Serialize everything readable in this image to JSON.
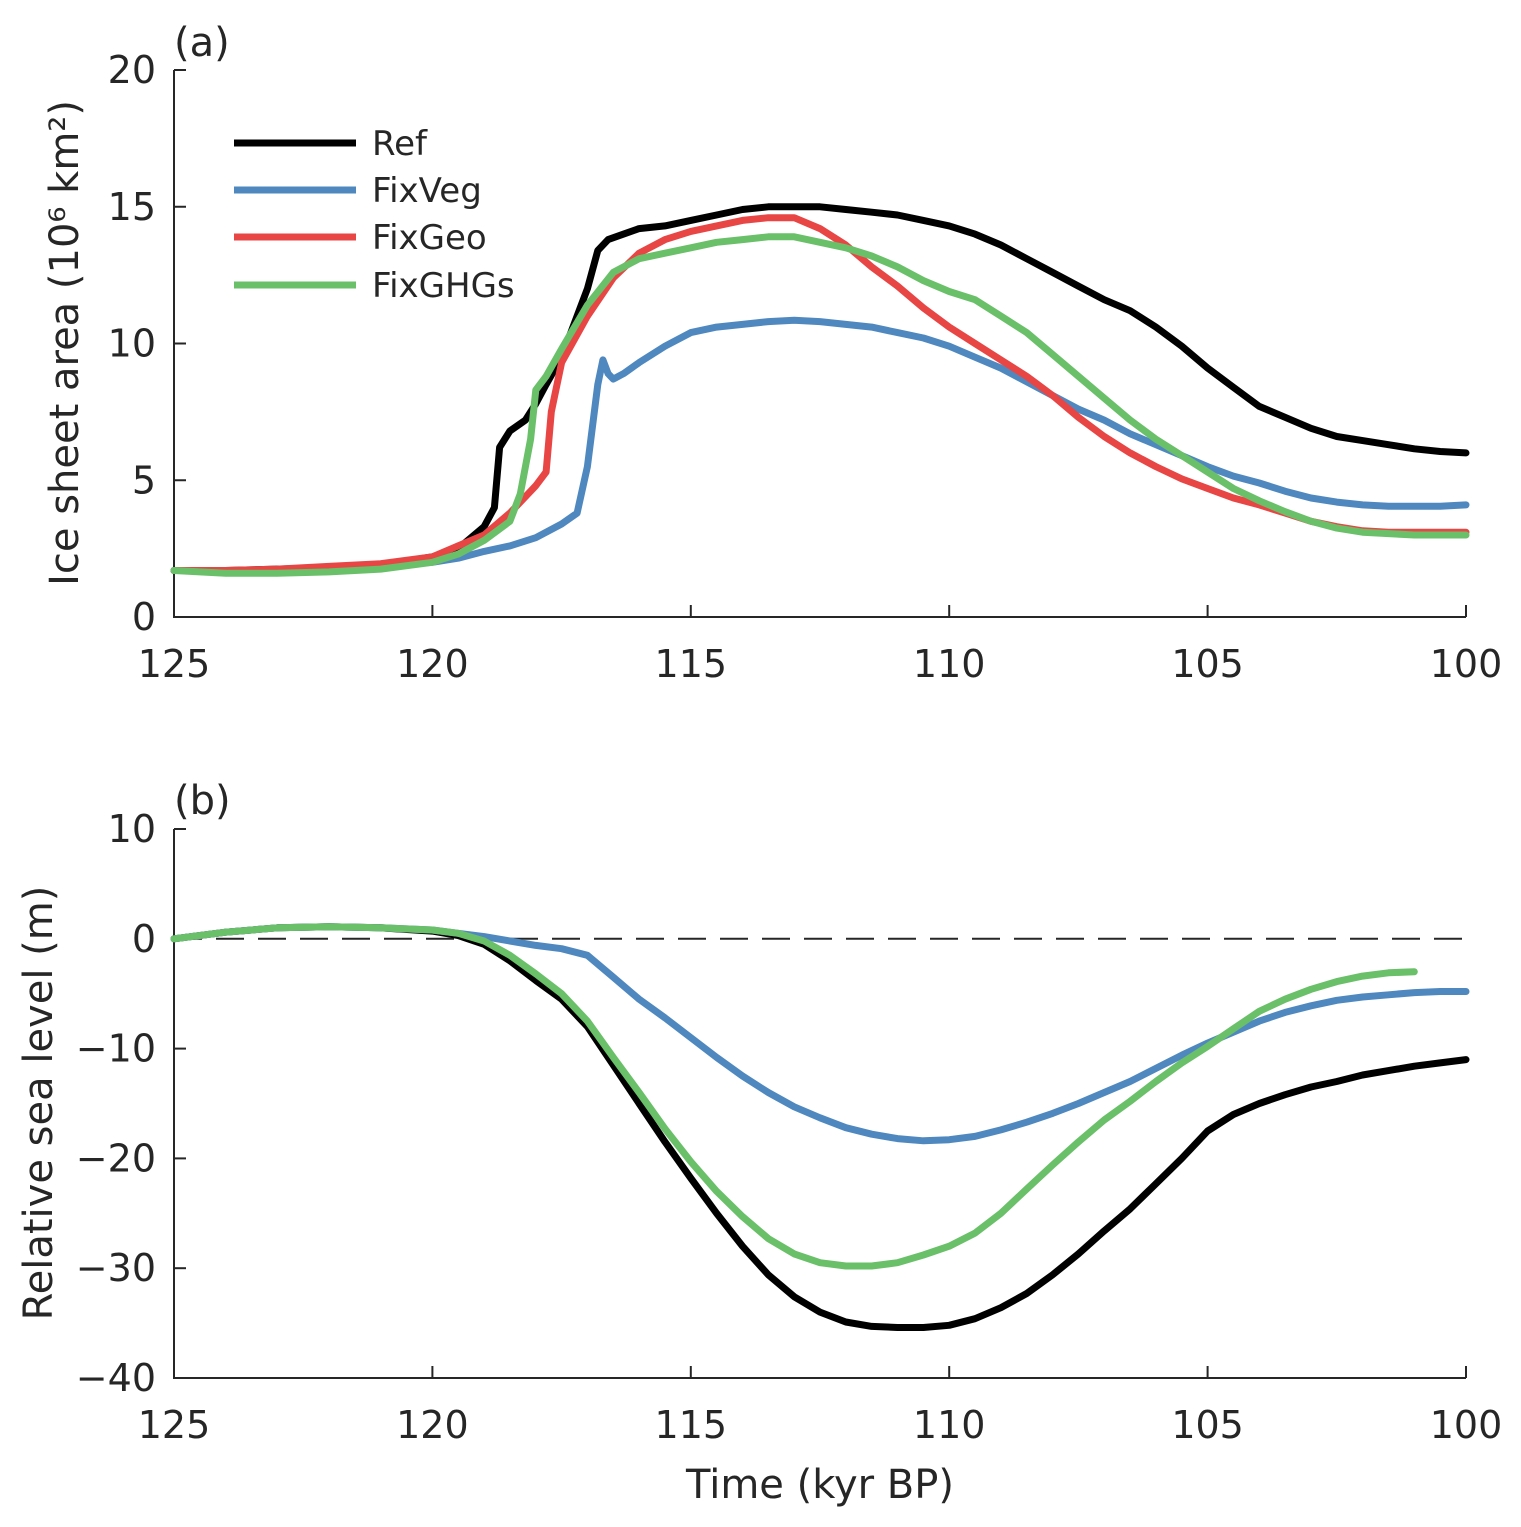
{
  "chart_data": [
    {
      "type": "line",
      "panel_label": "(a)",
      "xlabel": "",
      "ylabel": "Ice sheet area (10⁶ km²)",
      "xlim": [
        125,
        100
      ],
      "ylim": [
        0,
        20
      ],
      "xticks": [
        "125",
        "120",
        "115",
        "110",
        "105",
        "100"
      ],
      "yticks": [
        "0",
        "5",
        "10",
        "15",
        "20"
      ],
      "grid": false,
      "legend": "top-left",
      "series": [
        {
          "name": "Ref",
          "color": "#000000",
          "x": [
            125,
            124,
            123,
            122,
            121,
            120,
            119.5,
            119,
            118.8,
            118.7,
            118.5,
            118.2,
            118,
            117.8,
            117.5,
            117.3,
            117,
            116.8,
            116.6,
            116.3,
            116,
            115.5,
            115,
            114.5,
            114,
            113.5,
            113,
            112.5,
            112,
            111.5,
            111,
            110.5,
            110,
            109.5,
            109,
            108.5,
            108,
            107.5,
            107,
            106.5,
            106,
            105.5,
            105,
            104.5,
            104,
            103.5,
            103,
            102.5,
            102,
            101.5,
            101,
            100.5,
            100
          ],
          "y": [
            1.7,
            1.7,
            1.75,
            1.8,
            1.9,
            2.2,
            2.5,
            3.3,
            4,
            6.2,
            6.8,
            7.2,
            7.8,
            8.5,
            9.5,
            10.5,
            12,
            13.4,
            13.8,
            14,
            14.2,
            14.3,
            14.5,
            14.7,
            14.9,
            15,
            15,
            15,
            14.9,
            14.8,
            14.7,
            14.5,
            14.3,
            14,
            13.6,
            13.1,
            12.6,
            12.1,
            11.6,
            11.2,
            10.6,
            9.9,
            9.1,
            8.4,
            7.7,
            7.3,
            6.9,
            6.6,
            6.45,
            6.3,
            6.15,
            6.05,
            6
          ]
        },
        {
          "name": "FixVeg",
          "color": "#4f88bf",
          "x": [
            125,
            124,
            123,
            122,
            121,
            120,
            119.5,
            119,
            118.5,
            118,
            117.5,
            117.2,
            117,
            116.8,
            116.7,
            116.6,
            116.5,
            116.3,
            116,
            115.5,
            115,
            114.5,
            114,
            113.5,
            113,
            112.5,
            112,
            111.5,
            111,
            110.5,
            110,
            109.5,
            109,
            108.5,
            108,
            107.5,
            107,
            106.5,
            106,
            105.5,
            105,
            104.5,
            104,
            103.5,
            103,
            102.5,
            102,
            101.5,
            101,
            100.5,
            100
          ],
          "y": [
            1.7,
            1.7,
            1.7,
            1.75,
            1.85,
            2,
            2.15,
            2.4,
            2.6,
            2.9,
            3.4,
            3.8,
            5.5,
            8.5,
            9.4,
            8.9,
            8.7,
            8.9,
            9.3,
            9.9,
            10.4,
            10.6,
            10.7,
            10.8,
            10.85,
            10.8,
            10.7,
            10.6,
            10.4,
            10.2,
            9.9,
            9.5,
            9.1,
            8.6,
            8.1,
            7.6,
            7.2,
            6.7,
            6.3,
            5.9,
            5.5,
            5.15,
            4.9,
            4.6,
            4.35,
            4.2,
            4.1,
            4.05,
            4.05,
            4.05,
            4.1
          ]
        },
        {
          "name": "FixGeo",
          "color": "#e84545",
          "x": [
            125,
            124,
            123,
            122,
            121,
            120,
            119.5,
            119,
            118.5,
            118,
            117.8,
            117.7,
            117.5,
            117,
            116.5,
            116,
            115.5,
            115,
            114.5,
            114,
            113.5,
            113,
            112.5,
            112,
            111.5,
            111,
            110.5,
            110,
            109.5,
            109,
            108.5,
            108,
            107.5,
            107,
            106.5,
            106,
            105.5,
            105,
            104.5,
            104,
            103.5,
            103,
            102.5,
            102,
            101.5,
            101,
            100.5,
            100
          ],
          "y": [
            1.7,
            1.7,
            1.75,
            1.85,
            1.95,
            2.2,
            2.6,
            3,
            3.8,
            4.8,
            5.3,
            7.5,
            9.3,
            11,
            12.4,
            13.3,
            13.8,
            14.1,
            14.3,
            14.5,
            14.6,
            14.6,
            14.2,
            13.6,
            12.8,
            12.1,
            11.3,
            10.6,
            10,
            9.4,
            8.8,
            8.1,
            7.3,
            6.6,
            6,
            5.5,
            5.05,
            4.7,
            4.35,
            4.1,
            3.8,
            3.5,
            3.3,
            3.15,
            3.1,
            3.1,
            3.1,
            3.1
          ]
        },
        {
          "name": "FixGHGs",
          "color": "#6abf69",
          "x": [
            125,
            124,
            123,
            122,
            121,
            120,
            119.5,
            119,
            118.5,
            118.3,
            118.1,
            118,
            117.8,
            117.5,
            117,
            116.5,
            116,
            115.5,
            115,
            114.5,
            114,
            113.5,
            113,
            112.5,
            112,
            111.5,
            111,
            110.5,
            110,
            109.5,
            109,
            108.5,
            108,
            107.5,
            107,
            106.5,
            106,
            105.5,
            105,
            104.5,
            104,
            103.5,
            103,
            102.5,
            102,
            101.5,
            101,
            100.5,
            100
          ],
          "y": [
            1.7,
            1.6,
            1.6,
            1.65,
            1.75,
            2,
            2.3,
            2.8,
            3.5,
            4.5,
            6.5,
            8.3,
            8.8,
            9.8,
            11.4,
            12.6,
            13.1,
            13.3,
            13.5,
            13.7,
            13.8,
            13.9,
            13.9,
            13.7,
            13.5,
            13.2,
            12.8,
            12.3,
            11.9,
            11.6,
            11,
            10.4,
            9.6,
            8.8,
            8,
            7.2,
            6.5,
            5.9,
            5.3,
            4.7,
            4.25,
            3.85,
            3.5,
            3.25,
            3.1,
            3.05,
            3,
            3,
            3
          ]
        }
      ]
    },
    {
      "type": "line",
      "panel_label": "(b)",
      "xlabel": "Time (kyr BP)",
      "ylabel": "Relative sea level (m)",
      "xlim": [
        125,
        100
      ],
      "ylim": [
        -40,
        10
      ],
      "xticks": [
        "125",
        "120",
        "115",
        "110",
        "105",
        "100"
      ],
      "yticks": [
        "−40",
        "−30",
        "−20",
        "−10",
        "0",
        "10"
      ],
      "reference_line": {
        "y": 0,
        "style": "dashed"
      },
      "grid": false,
      "series": [
        {
          "name": "Ref",
          "color": "#000000",
          "x": [
            125,
            124,
            123,
            122,
            121,
            120,
            119.5,
            119,
            118.5,
            118,
            117.5,
            117,
            116.5,
            116,
            115.5,
            115,
            114.5,
            114,
            113.5,
            113,
            112.5,
            112,
            111.5,
            111,
            110.5,
            110,
            109.5,
            109,
            108.5,
            108,
            107.5,
            107,
            106.5,
            106,
            105.5,
            105,
            104.5,
            104,
            103.5,
            103,
            102.5,
            102,
            101.5,
            101,
            100.5,
            100
          ],
          "y": [
            0,
            0.6,
            1,
            1.1,
            1,
            0.7,
            0.3,
            -0.5,
            -2,
            -3.8,
            -5.5,
            -8,
            -11.5,
            -15,
            -18.5,
            -21.8,
            -25,
            -28,
            -30.6,
            -32.6,
            -34,
            -34.9,
            -35.3,
            -35.4,
            -35.4,
            -35.2,
            -34.6,
            -33.6,
            -32.3,
            -30.6,
            -28.7,
            -26.6,
            -24.6,
            -22.3,
            -20,
            -17.5,
            -16,
            -15,
            -14.2,
            -13.5,
            -13,
            -12.4,
            -12,
            -11.6,
            -11.3,
            -11
          ]
        },
        {
          "name": "FixVeg",
          "color": "#4f88bf",
          "x": [
            125,
            124,
            123,
            122,
            121,
            120,
            119.5,
            119,
            118.5,
            118,
            117.5,
            117,
            116.5,
            116,
            115.5,
            115,
            114.5,
            114,
            113.5,
            113,
            112.5,
            112,
            111.5,
            111,
            110.5,
            110,
            109.5,
            109,
            108.5,
            108,
            107.5,
            107,
            106.5,
            106,
            105.5,
            105,
            104.5,
            104,
            103.5,
            103,
            102.5,
            102,
            101.5,
            101,
            100.5,
            100
          ],
          "y": [
            0,
            0.6,
            1,
            1.1,
            1,
            0.8,
            0.5,
            0.2,
            -0.2,
            -0.6,
            -0.9,
            -1.5,
            -3.5,
            -5.5,
            -7.2,
            -9,
            -10.8,
            -12.5,
            -14,
            -15.3,
            -16.3,
            -17.2,
            -17.8,
            -18.2,
            -18.4,
            -18.3,
            -18,
            -17.4,
            -16.7,
            -15.9,
            -15,
            -14,
            -13,
            -11.8,
            -10.6,
            -9.5,
            -8.5,
            -7.5,
            -6.7,
            -6.1,
            -5.6,
            -5.3,
            -5.1,
            -4.9,
            -4.8,
            -4.8
          ]
        },
        {
          "name": "FixGHGs",
          "color": "#6abf69",
          "x": [
            125,
            124,
            123,
            122,
            121,
            120,
            119.5,
            119,
            118.5,
            118,
            117.5,
            117,
            116.5,
            116,
            115.5,
            115,
            114.5,
            114,
            113.5,
            113,
            112.5,
            112,
            111.5,
            111,
            110.5,
            110,
            109.5,
            109,
            108.5,
            108,
            107.5,
            107,
            106.5,
            106,
            105.5,
            105,
            104.5,
            104,
            103.5,
            103,
            102.5,
            102,
            101.5,
            101
          ],
          "y": [
            0,
            0.6,
            1,
            1.1,
            1,
            0.8,
            0.5,
            -0.2,
            -1.5,
            -3.2,
            -5,
            -7.5,
            -10.8,
            -14,
            -17.3,
            -20.3,
            -23,
            -25.3,
            -27.3,
            -28.7,
            -29.5,
            -29.8,
            -29.8,
            -29.5,
            -28.8,
            -28,
            -26.8,
            -25,
            -22.8,
            -20.6,
            -18.5,
            -16.5,
            -14.8,
            -13,
            -11.3,
            -9.8,
            -8.2,
            -6.6,
            -5.5,
            -4.6,
            -3.9,
            -3.4,
            -3.1,
            -3
          ]
        }
      ]
    }
  ]
}
